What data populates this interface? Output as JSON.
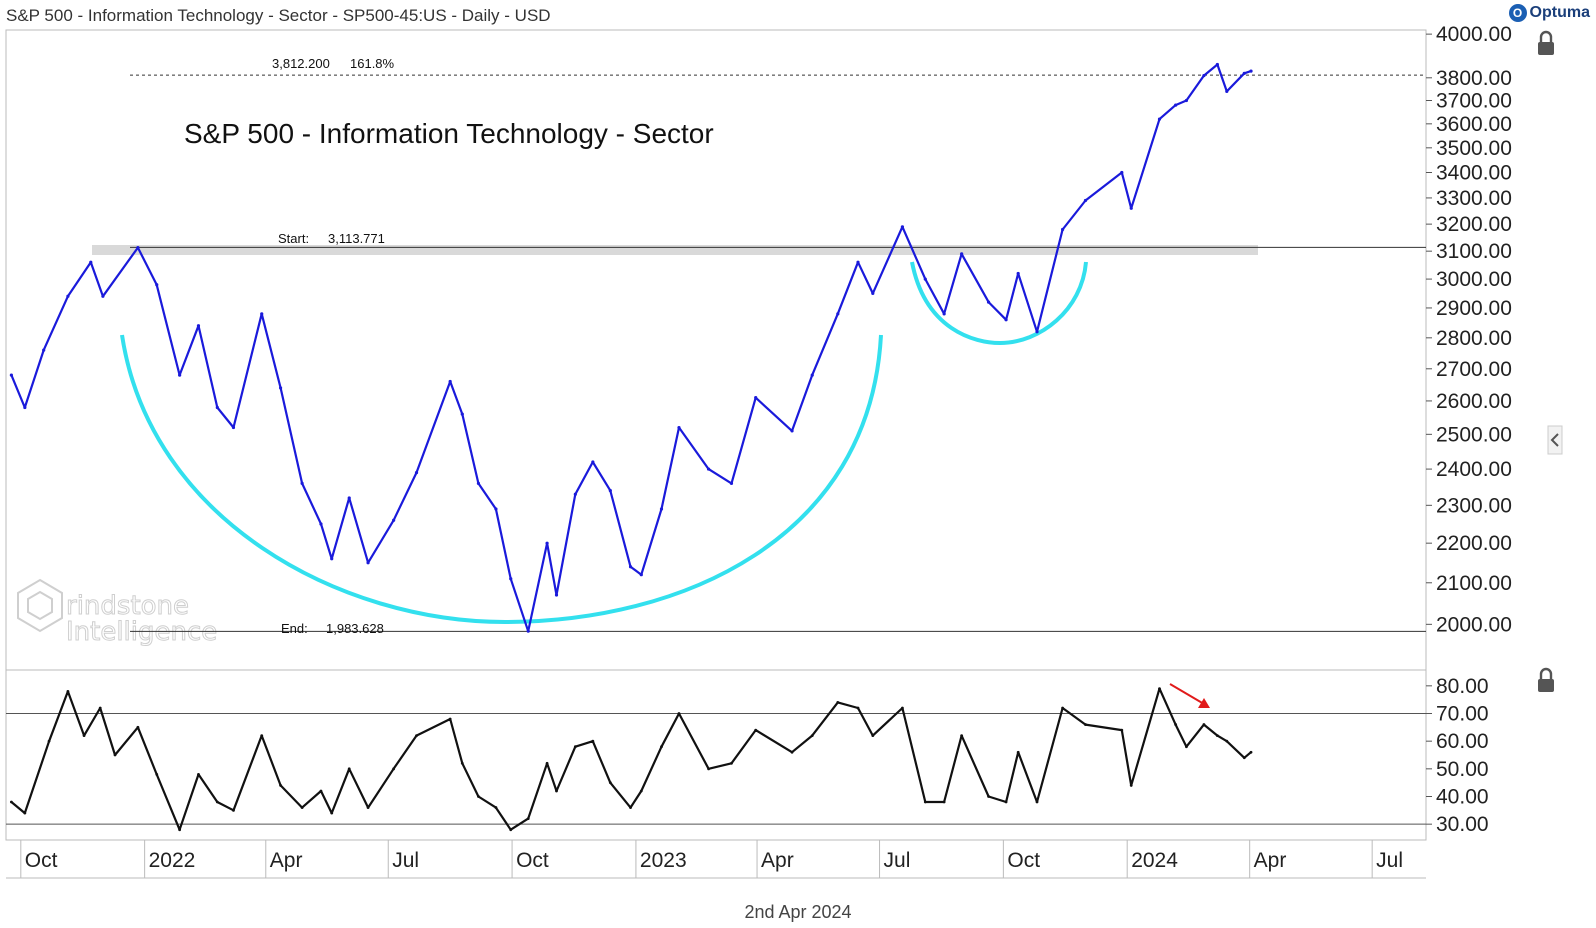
{
  "header": {
    "title": "S&P 500 - Information Technology - Sector - SP500-45:US - Daily - USD",
    "logo_text": "Optuma"
  },
  "footer": {
    "date": "2nd Apr 2024"
  },
  "watermark": {
    "line1": "rindstone",
    "line2": "Intelligence"
  },
  "colors": {
    "price": "#1a1adb",
    "cup": "#33e0ee",
    "rsi": "#111111",
    "arrow": "#e11b1b",
    "band": "#d9d9d9",
    "grid": "#555555"
  },
  "chart_data": [
    {
      "type": "line",
      "title": "S&P 500 - Information Technology - Sector",
      "ylim": [
        1900,
        4010
      ],
      "y_ticks": [
        "4000.00",
        "3800.00",
        "3700.00",
        "3600.00",
        "3500.00",
        "3400.00",
        "3300.00",
        "3200.00",
        "3100.00",
        "3000.00",
        "2900.00",
        "2800.00",
        "2700.00",
        "2600.00",
        "2500.00",
        "2400.00",
        "2300.00",
        "2200.00",
        "2100.00",
        "2000.00"
      ],
      "x_ticks": [
        "Oct",
        "2022",
        "Apr",
        "Jul",
        "Oct",
        "2023",
        "Apr",
        "Jul",
        "Oct",
        "2024",
        "Apr",
        "Jul"
      ],
      "annotations": {
        "fib": {
          "value_label": "3,812.200",
          "pct_label": "161.8%",
          "value": 3812.2
        },
        "start": {
          "label": "Start:",
          "value_label": "3,113.771",
          "value": 3113.771
        },
        "end": {
          "label": "End:",
          "value_label": "1,983.628",
          "value": 1983.628
        }
      },
      "series": [
        {
          "points": [
            [
              "2021-09-24",
              2680
            ],
            [
              "2021-10-04",
              2580
            ],
            [
              "2021-10-18",
              2760
            ],
            [
              "2021-11-05",
              2940
            ],
            [
              "2021-11-22",
              3060
            ],
            [
              "2021-12-01",
              2940
            ],
            [
              "2021-12-27",
              3113
            ],
            [
              "2022-01-10",
              2980
            ],
            [
              "2022-01-27",
              2680
            ],
            [
              "2022-02-10",
              2840
            ],
            [
              "2022-02-24",
              2580
            ],
            [
              "2022-03-08",
              2520
            ],
            [
              "2022-03-29",
              2880
            ],
            [
              "2022-04-12",
              2640
            ],
            [
              "2022-04-28",
              2360
            ],
            [
              "2022-05-12",
              2250
            ],
            [
              "2022-05-20",
              2160
            ],
            [
              "2022-06-02",
              2320
            ],
            [
              "2022-06-16",
              2150
            ],
            [
              "2022-07-05",
              2260
            ],
            [
              "2022-07-22",
              2390
            ],
            [
              "2022-08-16",
              2660
            ],
            [
              "2022-08-25",
              2560
            ],
            [
              "2022-09-06",
              2360
            ],
            [
              "2022-09-19",
              2290
            ],
            [
              "2022-09-30",
              2110
            ],
            [
              "2022-10-13",
              1984
            ],
            [
              "2022-10-27",
              2200
            ],
            [
              "2022-11-03",
              2070
            ],
            [
              "2022-11-17",
              2330
            ],
            [
              "2022-11-30",
              2420
            ],
            [
              "2022-12-13",
              2340
            ],
            [
              "2022-12-28",
              2140
            ],
            [
              "2023-01-05",
              2120
            ],
            [
              "2023-01-20",
              2290
            ],
            [
              "2023-02-02",
              2520
            ],
            [
              "2023-02-24",
              2400
            ],
            [
              "2023-03-13",
              2360
            ],
            [
              "2023-03-31",
              2610
            ],
            [
              "2023-04-27",
              2510
            ],
            [
              "2023-05-12",
              2680
            ],
            [
              "2023-05-31",
              2880
            ],
            [
              "2023-06-15",
              3060
            ],
            [
              "2023-06-26",
              2950
            ],
            [
              "2023-07-18",
              3190
            ],
            [
              "2023-08-04",
              3000
            ],
            [
              "2023-08-18",
              2880
            ],
            [
              "2023-08-31",
              3090
            ],
            [
              "2023-09-20",
              2920
            ],
            [
              "2023-10-03",
              2860
            ],
            [
              "2023-10-12",
              3020
            ],
            [
              "2023-10-26",
              2820
            ],
            [
              "2023-11-14",
              3180
            ],
            [
              "2023-12-01",
              3290
            ],
            [
              "2023-12-28",
              3400
            ],
            [
              "2024-01-04",
              3260
            ],
            [
              "2024-01-25",
              3620
            ],
            [
              "2024-02-06",
              3680
            ],
            [
              "2024-02-14",
              3700
            ],
            [
              "2024-02-27",
              3810
            ],
            [
              "2024-03-08",
              3860
            ],
            [
              "2024-03-15",
              3740
            ],
            [
              "2024-03-28",
              3820
            ],
            [
              "2024-04-02",
              3830
            ]
          ]
        }
      ]
    },
    {
      "type": "line",
      "ylim": [
        25,
        85
      ],
      "y_ticks": [
        "80.00",
        "70.00",
        "60.00",
        "50.00",
        "40.00",
        "30.00"
      ],
      "reference_lines": [
        70,
        30
      ],
      "series": [
        {
          "points": [
            [
              "2021-09-24",
              38
            ],
            [
              "2021-10-04",
              34
            ],
            [
              "2021-10-22",
              60
            ],
            [
              "2021-11-05",
              78
            ],
            [
              "2021-11-17",
              62
            ],
            [
              "2021-11-29",
              72
            ],
            [
              "2021-12-10",
              55
            ],
            [
              "2021-12-27",
              65
            ],
            [
              "2022-01-10",
              48
            ],
            [
              "2022-01-27",
              28
            ],
            [
              "2022-02-10",
              48
            ],
            [
              "2022-02-24",
              38
            ],
            [
              "2022-03-08",
              35
            ],
            [
              "2022-03-29",
              62
            ],
            [
              "2022-04-12",
              44
            ],
            [
              "2022-04-28",
              36
            ],
            [
              "2022-05-12",
              42
            ],
            [
              "2022-05-20",
              34
            ],
            [
              "2022-06-02",
              50
            ],
            [
              "2022-06-16",
              36
            ],
            [
              "2022-07-05",
              50
            ],
            [
              "2022-07-22",
              62
            ],
            [
              "2022-08-16",
              68
            ],
            [
              "2022-08-25",
              52
            ],
            [
              "2022-09-06",
              40
            ],
            [
              "2022-09-19",
              36
            ],
            [
              "2022-09-30",
              28
            ],
            [
              "2022-10-13",
              32
            ],
            [
              "2022-10-27",
              52
            ],
            [
              "2022-11-03",
              42
            ],
            [
              "2022-11-17",
              58
            ],
            [
              "2022-11-30",
              60
            ],
            [
              "2022-12-13",
              45
            ],
            [
              "2022-12-28",
              36
            ],
            [
              "2023-01-05",
              42
            ],
            [
              "2023-01-20",
              58
            ],
            [
              "2023-02-02",
              70
            ],
            [
              "2023-02-24",
              50
            ],
            [
              "2023-03-13",
              52
            ],
            [
              "2023-03-31",
              64
            ],
            [
              "2023-04-27",
              56
            ],
            [
              "2023-05-12",
              62
            ],
            [
              "2023-05-31",
              74
            ],
            [
              "2023-06-15",
              72
            ],
            [
              "2023-06-26",
              62
            ],
            [
              "2023-07-18",
              72
            ],
            [
              "2023-08-04",
              38
            ],
            [
              "2023-08-18",
              38
            ],
            [
              "2023-08-31",
              62
            ],
            [
              "2023-09-20",
              40
            ],
            [
              "2023-10-03",
              38
            ],
            [
              "2023-10-12",
              56
            ],
            [
              "2023-10-26",
              38
            ],
            [
              "2023-11-14",
              72
            ],
            [
              "2023-12-01",
              66
            ],
            [
              "2023-12-28",
              64
            ],
            [
              "2024-01-04",
              44
            ],
            [
              "2024-01-25",
              79
            ],
            [
              "2024-02-06",
              66
            ],
            [
              "2024-02-14",
              58
            ],
            [
              "2024-02-27",
              66
            ],
            [
              "2024-03-08",
              62
            ],
            [
              "2024-03-15",
              60
            ],
            [
              "2024-03-28",
              54
            ],
            [
              "2024-04-02",
              56
            ]
          ]
        }
      ]
    }
  ]
}
